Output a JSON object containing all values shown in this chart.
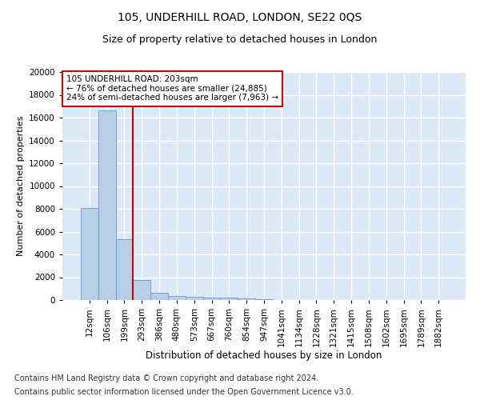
{
  "title1": "105, UNDERHILL ROAD, LONDON, SE22 0QS",
  "title2": "Size of property relative to detached houses in London",
  "xlabel": "Distribution of detached houses by size in London",
  "ylabel": "Number of detached properties",
  "categories": [
    "12sqm",
    "106sqm",
    "199sqm",
    "293sqm",
    "386sqm",
    "480sqm",
    "573sqm",
    "667sqm",
    "760sqm",
    "854sqm",
    "947sqm",
    "1041sqm",
    "1134sqm",
    "1228sqm",
    "1321sqm",
    "1415sqm",
    "1508sqm",
    "1602sqm",
    "1695sqm",
    "1789sqm",
    "1882sqm"
  ],
  "values": [
    8100,
    16600,
    5300,
    1750,
    650,
    350,
    280,
    220,
    200,
    150,
    50,
    30,
    20,
    10,
    8,
    5,
    4,
    3,
    2,
    2,
    1
  ],
  "bar_color": "#b8cfe8",
  "bar_edge_color": "#6699cc",
  "vline_x": 2.5,
  "vline_color": "#cc0000",
  "annotation_text": "105 UNDERHILL ROAD: 203sqm\n← 76% of detached houses are smaller (24,885)\n24% of semi-detached houses are larger (7,963) →",
  "annotation_box_color": "#ffffff",
  "annotation_box_edge": "#cc0000",
  "ylim": [
    0,
    20000
  ],
  "yticks": [
    0,
    2000,
    4000,
    6000,
    8000,
    10000,
    12000,
    14000,
    16000,
    18000,
    20000
  ],
  "footnote1": "Contains HM Land Registry data © Crown copyright and database right 2024.",
  "footnote2": "Contains public sector information licensed under the Open Government Licence v3.0.",
  "background_color": "#dce8f5",
  "grid_color": "#ffffff",
  "title1_fontsize": 10,
  "title2_fontsize": 9,
  "xlabel_fontsize": 8.5,
  "ylabel_fontsize": 8,
  "tick_fontsize": 7.5,
  "footnote_fontsize": 7
}
